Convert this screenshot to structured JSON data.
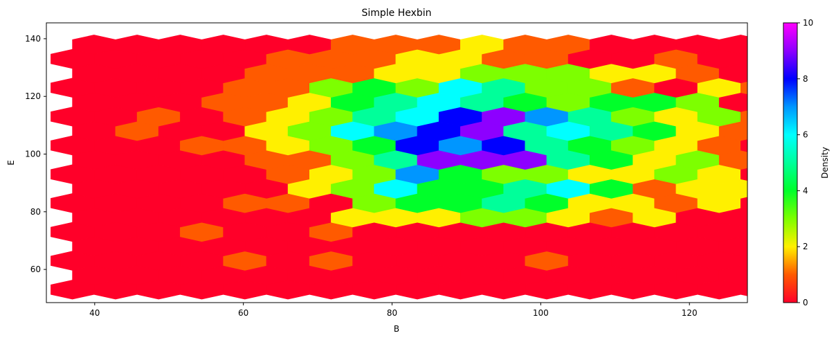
{
  "chart_data": {
    "type": "hexbin",
    "title": "Simple Hexbin",
    "xlabel": "B",
    "ylabel": "E",
    "xlim": [
      33.5,
      127.8
    ],
    "ylim": [
      48.5,
      145.5
    ],
    "x_ticks": [
      40,
      60,
      80,
      100,
      120
    ],
    "y_ticks": [
      60,
      80,
      100,
      120,
      140
    ],
    "colorbar": {
      "label": "Density",
      "min": 0,
      "max": 10,
      "ticks": [
        0,
        2,
        4,
        6,
        8,
        10
      ],
      "colormap": "gist_rainbow_r"
    },
    "grid": false,
    "hex_grid": {
      "x_start": 37.0,
      "x_step": 5.8,
      "cols": 17,
      "y_start": 53.0,
      "y_step": 5.0,
      "rows": 18,
      "counts": [
        [
          0,
          0,
          0,
          0,
          0,
          0,
          0,
          0,
          0,
          0,
          0,
          0,
          0,
          0,
          0,
          0,
          0
        ],
        [
          0,
          0,
          0,
          0,
          0,
          0,
          0,
          0,
          0,
          0,
          0,
          0,
          0,
          0,
          0,
          0,
          0
        ],
        [
          0,
          0,
          0,
          0,
          1,
          0,
          1,
          0,
          0,
          0,
          0,
          1,
          0,
          0,
          0,
          0,
          0
        ],
        [
          0,
          0,
          0,
          0,
          0,
          0,
          0,
          0,
          0,
          0,
          0,
          0,
          0,
          0,
          0,
          0,
          0
        ],
        [
          0,
          0,
          0,
          1,
          0,
          0,
          1,
          0,
          0,
          0,
          0,
          0,
          0,
          0,
          0,
          0,
          0
        ],
        [
          0,
          0,
          0,
          0,
          0,
          0,
          2,
          2,
          2,
          3,
          3,
          2,
          1,
          2,
          0,
          0,
          1
        ],
        [
          0,
          0,
          0,
          0,
          1,
          1,
          0,
          3,
          4,
          4,
          5,
          4,
          2,
          2,
          1,
          2,
          0
        ],
        [
          0,
          0,
          0,
          0,
          0,
          2,
          3,
          6,
          4,
          4,
          5,
          6,
          4,
          1,
          2,
          2,
          0
        ],
        [
          0,
          0,
          0,
          0,
          0,
          1,
          2,
          3,
          7,
          4,
          3,
          3,
          2,
          2,
          3,
          2,
          0
        ],
        [
          0,
          0,
          0,
          0,
          1,
          1,
          3,
          5,
          9,
          9,
          9,
          5,
          4,
          2,
          3,
          1,
          1
        ],
        [
          0,
          0,
          0,
          1,
          1,
          2,
          3,
          4,
          8,
          7,
          8,
          5,
          4,
          3,
          2,
          1,
          0
        ],
        [
          0,
          1,
          0,
          0,
          2,
          3,
          6,
          7,
          8,
          9,
          5,
          6,
          5,
          4,
          2,
          1,
          0
        ],
        [
          0,
          0,
          1,
          0,
          1,
          2,
          3,
          5,
          6,
          8,
          9,
          7,
          5,
          3,
          2,
          3,
          1
        ],
        [
          0,
          0,
          0,
          1,
          1,
          2,
          4,
          5,
          6,
          5,
          4,
          3,
          4,
          4,
          3,
          0,
          2
        ],
        [
          0,
          0,
          0,
          0,
          1,
          1,
          3,
          4,
          3,
          6,
          5,
          3,
          3,
          1,
          0,
          2,
          1
        ],
        [
          0,
          0,
          0,
          0,
          1,
          1,
          1,
          2,
          2,
          3,
          3,
          3,
          2,
          2,
          1,
          0,
          1
        ],
        [
          0,
          0,
          0,
          0,
          0,
          1,
          1,
          1,
          2,
          2,
          1,
          1,
          0,
          0,
          1,
          0,
          0
        ],
        [
          0,
          0,
          0,
          0,
          0,
          0,
          1,
          1,
          1,
          2,
          1,
          1,
          0,
          0,
          0,
          0,
          0
        ]
      ]
    }
  }
}
